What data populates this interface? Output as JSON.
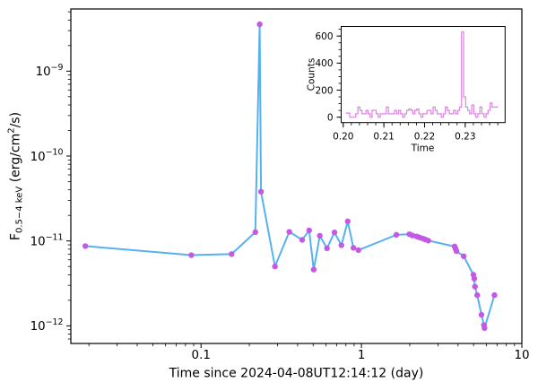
{
  "figure": {
    "background": "#ffffff"
  },
  "chart_data": [
    {
      "type": "line",
      "name": "xray-light-curve",
      "title": "",
      "xlabel": "Time since 2024-04-08UT12:14:12 (day)",
      "ylabel_parts": {
        "pre": "F",
        "sub": "0.5−4 keV",
        "mid": " (erg/cm",
        "sup": "2",
        "post": "/s)"
      },
      "xscale": "log",
      "yscale": "log",
      "xlim": [
        0.01543,
        10
      ],
      "ylim": [
        6.2e-13,
        5.4e-09
      ],
      "x_ticks": [
        {
          "v": 0.1,
          "label": "0.1"
        },
        {
          "v": 1,
          "label": "1"
        },
        {
          "v": 10,
          "label": "10"
        }
      ],
      "y_ticks": [
        {
          "v": 1e-09,
          "base": "10",
          "exp": "−9"
        },
        {
          "v": 1e-10,
          "base": "10",
          "exp": "−10"
        },
        {
          "v": 1e-11,
          "base": "10",
          "exp": "−11"
        },
        {
          "v": 1e-12,
          "base": "10",
          "exp": "−12"
        }
      ],
      "line_color": "#55b2ef",
      "marker_color": "#c45ae4",
      "x": [
        0.019,
        0.087,
        0.155,
        0.218,
        0.232,
        0.2365,
        0.289,
        0.355,
        0.427,
        0.472,
        0.504,
        0.55,
        0.61,
        0.679,
        0.75,
        0.821,
        0.891,
        0.958,
        1.65,
        1.99,
        2.08,
        2.21,
        2.3,
        2.41,
        2.5,
        2.61,
        3.81,
        3.86,
        3.91,
        4.34,
        4.99,
        5.05,
        5.1,
        5.27,
        5.6,
        5.8,
        5.85,
        6.75
      ],
      "y": [
        8.7e-12,
        6.8e-12,
        7e-12,
        1.27e-11,
        3.56e-09,
        3.8e-11,
        5e-12,
        1.28e-11,
        1.03e-11,
        1.33e-11,
        4.6e-12,
        1.15e-11,
        8.2e-12,
        1.26e-11,
        8.9e-12,
        1.7e-11,
        8.3e-12,
        7.8e-12,
        1.18e-11,
        1.2e-11,
        1.16e-11,
        1.13e-11,
        1.1e-11,
        1.07e-11,
        1.04e-11,
        1.01e-11,
        8.6e-12,
        8.1e-12,
        7.6e-12,
        6.6e-12,
        4e-12,
        3.6e-12,
        2.9e-12,
        2.3e-12,
        1.35e-12,
        1.02e-12,
        9.4e-13,
        2.3e-12
      ]
    },
    {
      "type": "step",
      "name": "counts-inset",
      "xlabel": "Time",
      "ylabel": "Counts",
      "xlim": [
        0.1995,
        0.2398
      ],
      "ylim": [
        -40,
        671
      ],
      "x_ticks": [
        {
          "v": 0.2,
          "label": "0.20"
        },
        {
          "v": 0.21,
          "label": "0.21"
        },
        {
          "v": 0.22,
          "label": "0.22"
        },
        {
          "v": 0.23,
          "label": "0.23"
        }
      ],
      "y_ticks": [
        {
          "v": 0,
          "label": "0"
        },
        {
          "v": 200,
          "label": "200"
        },
        {
          "v": 400,
          "label": "400"
        },
        {
          "v": 600,
          "label": "600"
        }
      ],
      "line_color": "#de82e3",
      "x_start": 0.2006,
      "dx": 0.0005,
      "counts": [
        30,
        30,
        0,
        0,
        0,
        25,
        75,
        50,
        25,
        25,
        50,
        25,
        0,
        50,
        50,
        25,
        0,
        25,
        25,
        25,
        75,
        25,
        25,
        25,
        50,
        25,
        50,
        25,
        0,
        25,
        50,
        60,
        50,
        25,
        50,
        60,
        25,
        0,
        25,
        25,
        50,
        50,
        25,
        75,
        50,
        25,
        25,
        0,
        25,
        75,
        50,
        25,
        25,
        50,
        25,
        50,
        75,
        630,
        150,
        75,
        50,
        25,
        90,
        25,
        0,
        25,
        75,
        25,
        0,
        25,
        50,
        105,
        75,
        75,
        75
      ]
    }
  ]
}
